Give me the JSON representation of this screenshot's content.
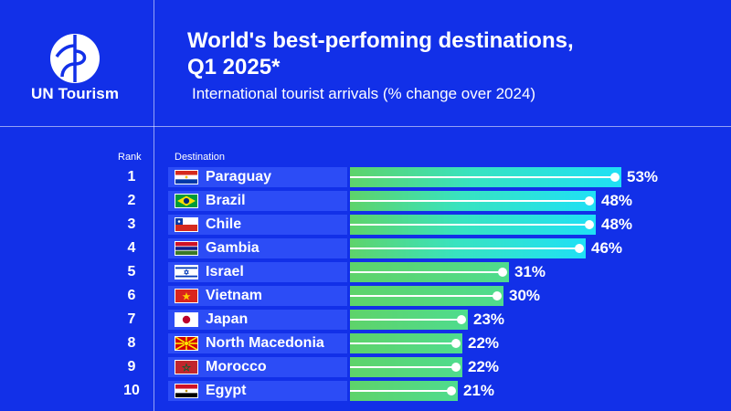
{
  "brand": {
    "name": "UN Tourism"
  },
  "header": {
    "title_line1": "World's best-perfoming destinations,",
    "title_line2": "Q1 2025*",
    "subtitle": "International tourist arrivals (% change over 2024)"
  },
  "columns": {
    "rank": "Rank",
    "destination": "Destination"
  },
  "colors": {
    "background": "#1230e8",
    "row_box": "#2c4cf6",
    "bar_green": "#5ed36a",
    "bar_cyan": "#1fe0f5"
  },
  "chart_data": {
    "type": "bar",
    "orientation": "horizontal",
    "title": "World's best-perfoming destinations, Q1 2025*",
    "subtitle": "International tourist arrivals (% change over 2024)",
    "categories": [
      "Paraguay",
      "Brazil",
      "Chile",
      "Gambia",
      "Israel",
      "Vietnam",
      "Japan",
      "North Macedonia",
      "Morocco",
      "Egypt"
    ],
    "ranks": [
      "1",
      "2",
      "3",
      "4",
      "5",
      "6",
      "7",
      "8",
      "9",
      "10"
    ],
    "values": [
      53,
      48,
      48,
      46,
      31,
      30,
      23,
      22,
      22,
      21
    ],
    "labels": [
      "53%",
      "48%",
      "48%",
      "46%",
      "31%",
      "30%",
      "23%",
      "22%",
      "22%",
      "21%"
    ],
    "flags": [
      "paraguay-flag-icon",
      "brazil-flag-icon",
      "chile-flag-icon",
      "gambia-flag-icon",
      "israel-flag-icon",
      "vietnam-flag-icon",
      "japan-flag-icon",
      "north-macedonia-flag-icon",
      "morocco-flag-icon",
      "egypt-flag-icon"
    ],
    "xlim": [
      0,
      53
    ],
    "grid": false,
    "legend": "none"
  }
}
